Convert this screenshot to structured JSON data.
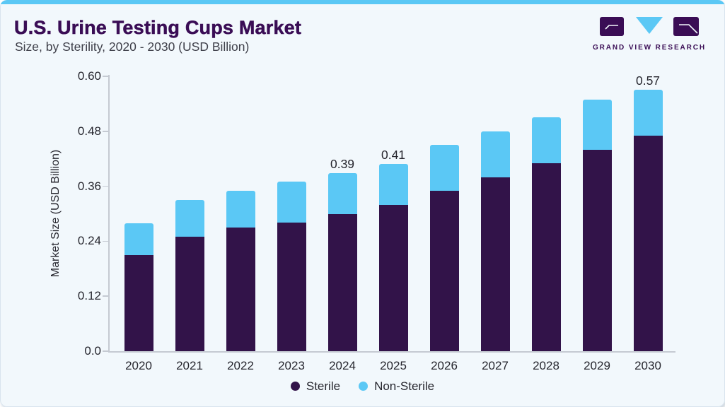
{
  "header": {
    "title": "U.S. Urine Testing Cups Market",
    "subtitle": "Size, by Sterility, 2020 - 2030 (USD Billion)"
  },
  "logo": {
    "brand": "GRAND VIEW RESEARCH"
  },
  "colors": {
    "accent_strip": "#5BC8F5",
    "card_background": "#F2F8FC",
    "title_purple": "#3A0D55",
    "sterile_purple": "#321349",
    "non_sterile_blue": "#5BC8F5",
    "axis_line": "#C5CAD2",
    "text_dark": "#26262E"
  },
  "chart_data": {
    "type": "bar",
    "stacked": true,
    "title": "U.S. Urine Testing Cups Market Size, by Sterility, 2020 - 2030 (USD Billion)",
    "categories": [
      "2020",
      "2021",
      "2022",
      "2023",
      "2024",
      "2025",
      "2026",
      "2027",
      "2028",
      "2029",
      "2030"
    ],
    "series": [
      {
        "name": "Sterile",
        "color": "#321349",
        "values": [
          0.21,
          0.25,
          0.27,
          0.28,
          0.3,
          0.32,
          0.35,
          0.38,
          0.41,
          0.44,
          0.47
        ]
      },
      {
        "name": "Non-Sterile",
        "color": "#5BC8F5",
        "values": [
          0.07,
          0.08,
          0.08,
          0.09,
          0.09,
          0.09,
          0.1,
          0.1,
          0.1,
          0.11,
          0.1
        ]
      }
    ],
    "totals": [
      0.28,
      0.33,
      0.35,
      0.37,
      0.39,
      0.41,
      0.45,
      0.48,
      0.51,
      0.55,
      0.57
    ],
    "total_labels": [
      "",
      "",
      "",
      "",
      "0.39",
      "0.41",
      "",
      "",
      "",
      "",
      "0.57"
    ],
    "xlabel": "",
    "ylabel": "Market Size (USD Billion)",
    "yticks_labels": [
      "0.0",
      "0.12",
      "0.24",
      "0.36",
      "0.48",
      "0.60"
    ],
    "ytick_values": [
      0,
      0.12,
      0.24,
      0.36,
      0.48,
      0.6
    ],
    "ylim": [
      0,
      0.6
    ],
    "grid": false,
    "legend_position": "bottom"
  }
}
